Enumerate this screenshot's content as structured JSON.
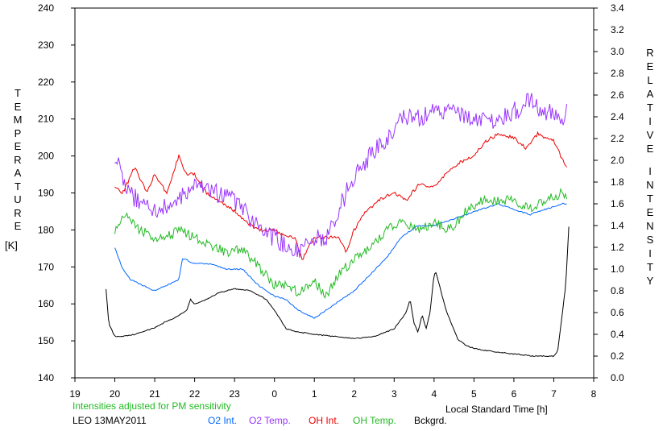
{
  "chart_data": {
    "type": "line",
    "y_left_label": "TEMPERATURE",
    "y_left_unit": "[K]",
    "y_right_label": "RELATIVE INTENSITY",
    "xlabel": "Local Standard Time [h]",
    "note": "Intensities adjusted for PM sensitivity",
    "station_label": "LEO 13MAY2011",
    "x_ticks": [
      "19",
      "20",
      "21",
      "22",
      "23",
      "0",
      "1",
      "2",
      "3",
      "4",
      "5",
      "6",
      "7",
      "8"
    ],
    "xlim": [
      19,
      32
    ],
    "y_left_ticks": [
      140,
      150,
      160,
      170,
      180,
      190,
      200,
      210,
      220,
      230,
      240
    ],
    "ylim_left": [
      140,
      240
    ],
    "y_right_ticks": [
      "0.0",
      "0.2",
      "0.4",
      "0.6",
      "0.8",
      "1.0",
      "1.2",
      "1.4",
      "1.6",
      "1.8",
      "2.0",
      "2.2",
      "2.4",
      "2.6",
      "2.8",
      "3.0",
      "3.2",
      "3.4"
    ],
    "ylim_right": [
      0.0,
      3.4
    ],
    "grid": false,
    "series": [
      {
        "name": "O2 Int.",
        "color": "#0066ff",
        "axis": "right",
        "x": [
          20.0,
          20.2,
          20.4,
          20.7,
          21.0,
          21.3,
          21.6,
          21.7,
          22.0,
          22.4,
          22.8,
          23.2,
          23.6,
          24.0,
          24.3,
          24.6,
          25.0,
          25.3,
          25.6,
          26.0,
          26.4,
          26.8,
          27.2,
          27.6,
          28.0,
          28.4,
          28.8,
          29.2,
          29.6,
          30.0,
          30.4,
          30.8,
          31.2,
          31.35
        ],
        "y": [
          1.2,
          1.0,
          0.9,
          0.85,
          0.8,
          0.85,
          0.9,
          1.1,
          1.05,
          1.05,
          1.0,
          1.0,
          0.85,
          0.75,
          0.72,
          0.62,
          0.55,
          0.62,
          0.7,
          0.8,
          0.95,
          1.1,
          1.3,
          1.4,
          1.4,
          1.45,
          1.5,
          1.55,
          1.6,
          1.55,
          1.5,
          1.55,
          1.6,
          1.6
        ]
      },
      {
        "name": "O2 Temp.",
        "color": "#9933ff",
        "axis": "left",
        "x": [
          20.0,
          20.3,
          20.6,
          21.0,
          21.3,
          21.6,
          22.0,
          22.4,
          22.8,
          23.2,
          23.6,
          24.0,
          24.3,
          24.6,
          25.0,
          25.3,
          25.6,
          26.0,
          26.4,
          26.8,
          27.2,
          27.6,
          28.0,
          28.4,
          28.8,
          29.2,
          29.6,
          30.0,
          30.4,
          30.8,
          31.2,
          31.35
        ],
        "y": [
          200,
          190,
          188,
          185,
          186,
          188,
          192,
          190,
          190,
          186,
          180,
          178,
          176,
          174,
          178,
          178,
          185,
          195,
          200,
          205,
          210,
          210,
          212,
          212,
          210,
          210,
          210,
          212,
          215,
          212,
          210,
          212
        ]
      },
      {
        "name": "OH Int.",
        "color": "#ee0000",
        "axis": "left",
        "x": [
          20.0,
          20.2,
          20.5,
          20.8,
          21.0,
          21.3,
          21.6,
          21.8,
          22.0,
          22.3,
          22.6,
          23.0,
          23.3,
          23.6,
          24.0,
          24.3,
          24.5,
          24.7,
          25.0,
          25.3,
          25.6,
          25.8,
          26.0,
          26.3,
          26.6,
          27.0,
          27.3,
          27.6,
          28.0,
          28.3,
          28.6,
          29.0,
          29.3,
          29.6,
          30.0,
          30.3,
          30.6,
          31.0,
          31.35
        ],
        "y": [
          192,
          190,
          197,
          190,
          195,
          190,
          200,
          195,
          195,
          190,
          188,
          185,
          182,
          180,
          180,
          178,
          178,
          172,
          178,
          178,
          178,
          174,
          180,
          185,
          188,
          190,
          188,
          192,
          192,
          195,
          198,
          200,
          204,
          206,
          205,
          202,
          206,
          204,
          196
        ]
      },
      {
        "name": "OH Temp.",
        "color": "#22bb22",
        "axis": "left",
        "x": [
          20.0,
          20.3,
          20.6,
          21.0,
          21.3,
          21.6,
          22.0,
          22.4,
          22.8,
          23.2,
          23.6,
          24.0,
          24.3,
          24.6,
          25.0,
          25.3,
          25.6,
          26.0,
          26.4,
          26.8,
          27.2,
          27.6,
          28.0,
          28.4,
          28.8,
          29.2,
          29.6,
          30.0,
          30.4,
          30.8,
          31.2,
          31.35
        ],
        "y": [
          180,
          185,
          180,
          178,
          178,
          180,
          178,
          176,
          174,
          175,
          170,
          165,
          165,
          163,
          166,
          162,
          168,
          172,
          175,
          180,
          182,
          180,
          182,
          180,
          185,
          188,
          188,
          188,
          186,
          188,
          190,
          188
        ]
      },
      {
        "name": "Bckgrd.",
        "color": "#000000",
        "axis": "right",
        "x": [
          19.78,
          19.85,
          20.0,
          20.2,
          20.5,
          21.0,
          21.3,
          21.5,
          21.8,
          21.9,
          22.0,
          22.3,
          22.6,
          23.0,
          23.4,
          23.8,
          24.0,
          24.3,
          24.6,
          25.0,
          25.5,
          26.0,
          26.5,
          27.0,
          27.3,
          27.4,
          27.5,
          27.6,
          27.7,
          27.8,
          27.9,
          28.0,
          28.05,
          28.1,
          28.3,
          28.6,
          28.8,
          29.0,
          29.5,
          30.0,
          30.5,
          31.0,
          31.1,
          31.2,
          31.3,
          31.4
        ],
        "y": [
          0.82,
          0.5,
          0.38,
          0.38,
          0.4,
          0.46,
          0.52,
          0.55,
          0.62,
          0.72,
          0.68,
          0.72,
          0.78,
          0.82,
          0.8,
          0.72,
          0.62,
          0.45,
          0.42,
          0.4,
          0.38,
          0.36,
          0.38,
          0.45,
          0.6,
          0.72,
          0.5,
          0.42,
          0.58,
          0.45,
          0.6,
          0.95,
          0.97,
          0.9,
          0.62,
          0.35,
          0.3,
          0.27,
          0.24,
          0.22,
          0.2,
          0.2,
          0.25,
          0.55,
          0.85,
          1.55
        ]
      }
    ]
  }
}
